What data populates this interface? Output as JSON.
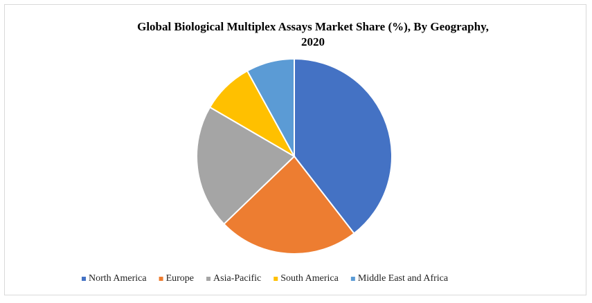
{
  "chart_data": {
    "type": "pie",
    "title": "Global Biological Multiplex Assays Market Share (%), By Geography, 2020",
    "categories": [
      "North America",
      "Europe",
      "Asia-Pacific",
      "South America",
      "Middle East and Africa"
    ],
    "values": [
      39.5,
      23.3,
      20.6,
      8.6,
      8.0
    ],
    "colors": [
      "#4472c4",
      "#ed7d31",
      "#a5a5a5",
      "#ffc000",
      "#5b9bd5"
    ],
    "legend": "bottom"
  }
}
